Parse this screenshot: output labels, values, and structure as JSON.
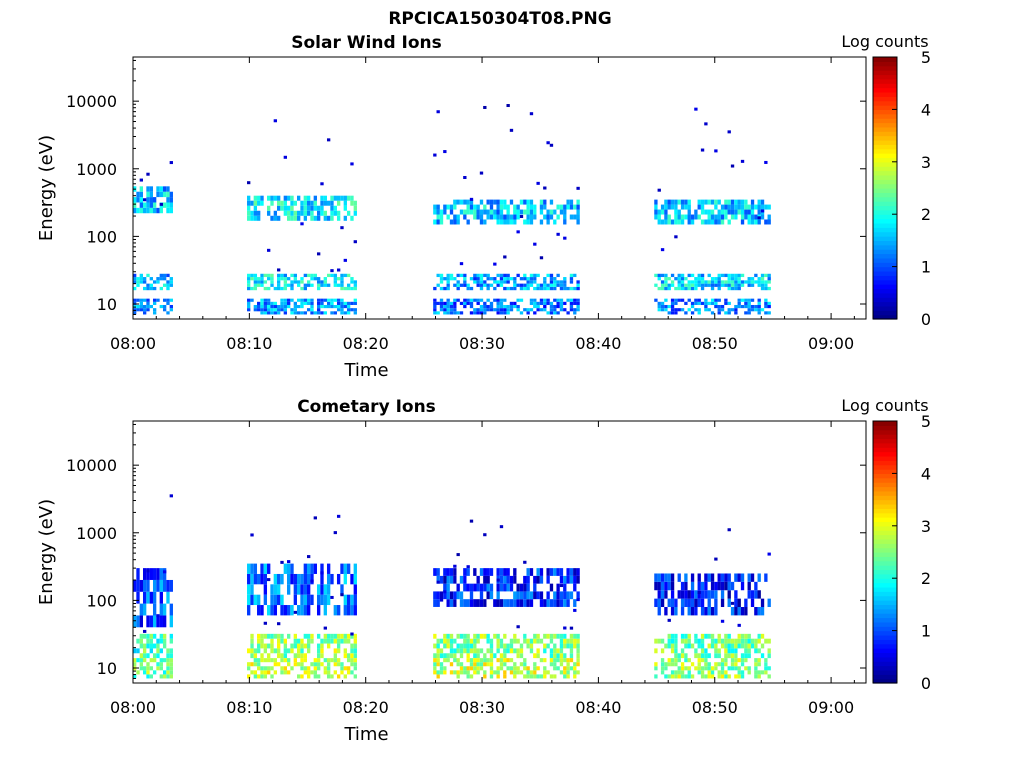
{
  "figure_title": "RPCICA150304T08.PNG",
  "chart_data": [
    {
      "type": "heatmap",
      "title": "Solar Wind Ions",
      "xlabel": "Time",
      "ylabel": "Energy (eV)",
      "x_ticks": [
        "08:00",
        "08:10",
        "08:20",
        "08:30",
        "08:40",
        "08:50",
        "09:00"
      ],
      "x_range_minutes": [
        0,
        63
      ],
      "y_scale": "log",
      "y_ticks": [
        {
          "value": 10,
          "label": "10"
        },
        {
          "value": 100,
          "label": "100"
        },
        {
          "value": 1000,
          "label": "1000"
        },
        {
          "value": 10000,
          "label": "10000"
        }
      ],
      "y_range_eV": [
        6,
        45000
      ],
      "colorbar": {
        "title": "Log counts",
        "ticks": [
          "0",
          "1",
          "2",
          "3",
          "4",
          "5"
        ],
        "range": [
          0,
          5
        ],
        "colormap": "jet"
      },
      "bursts": [
        {
          "start_min": 0.0,
          "end_min": 3.2,
          "bands_eV": [
            {
              "from": 220,
              "to": 550,
              "level": 1.6
            },
            {
              "from": 16,
              "to": 28,
              "level": 1.5
            },
            {
              "from": 7,
              "to": 12,
              "level": 1.2
            }
          ]
        },
        {
          "start_min": 9.8,
          "end_min": 19.2,
          "bands_eV": [
            {
              "from": 170,
              "to": 400,
              "level": 1.8
            },
            {
              "from": 16,
              "to": 28,
              "level": 1.8
            },
            {
              "from": 7,
              "to": 12,
              "level": 1.4
            }
          ]
        },
        {
          "start_min": 25.8,
          "end_min": 38.3,
          "bands_eV": [
            {
              "from": 150,
              "to": 350,
              "level": 1.6
            },
            {
              "from": 16,
              "to": 28,
              "level": 1.4
            },
            {
              "from": 7,
              "to": 12,
              "level": 1.2
            }
          ]
        },
        {
          "start_min": 44.8,
          "end_min": 54.8,
          "bands_eV": [
            {
              "from": 150,
              "to": 350,
              "level": 1.6
            },
            {
              "from": 16,
              "to": 28,
              "level": 1.7
            },
            {
              "from": 7,
              "to": 12,
              "level": 1.3
            }
          ]
        }
      ],
      "max_energy_eV": [
        3000,
        8000,
        9000,
        13000
      ]
    },
    {
      "type": "heatmap",
      "title": "Cometary Ions",
      "xlabel": "Time",
      "ylabel": "Energy (eV)",
      "x_ticks": [
        "08:00",
        "08:10",
        "08:20",
        "08:30",
        "08:40",
        "08:50",
        "09:00"
      ],
      "x_range_minutes": [
        0,
        63
      ],
      "y_scale": "log",
      "y_ticks": [
        {
          "value": 10,
          "label": "10"
        },
        {
          "value": 100,
          "label": "100"
        },
        {
          "value": 1000,
          "label": "1000"
        },
        {
          "value": 10000,
          "label": "10000"
        }
      ],
      "y_range_eV": [
        6,
        45000
      ],
      "colorbar": {
        "title": "Log counts",
        "ticks": [
          "0",
          "1",
          "2",
          "3",
          "4",
          "5"
        ],
        "range": [
          0,
          5
        ],
        "colormap": "jet"
      },
      "bursts": [
        {
          "start_min": 0.0,
          "end_min": 3.3,
          "bands_eV": [
            {
              "from": 40,
              "to": 300,
              "level": 1.0
            },
            {
              "from": 14,
              "to": 32,
              "level": 2.2
            },
            {
              "from": 7,
              "to": 14,
              "level": 2.4
            }
          ]
        },
        {
          "start_min": 9.8,
          "end_min": 19.2,
          "bands_eV": [
            {
              "from": 60,
              "to": 350,
              "level": 1.2
            },
            {
              "from": 14,
              "to": 32,
              "level": 2.6
            },
            {
              "from": 7,
              "to": 14,
              "level": 2.8
            }
          ]
        },
        {
          "start_min": 25.8,
          "end_min": 38.3,
          "bands_eV": [
            {
              "from": 80,
              "to": 300,
              "level": 0.8
            },
            {
              "from": 14,
              "to": 32,
              "level": 2.5
            },
            {
              "from": 7,
              "to": 14,
              "level": 2.8
            }
          ]
        },
        {
          "start_min": 44.8,
          "end_min": 54.8,
          "bands_eV": [
            {
              "from": 60,
              "to": 250,
              "level": 0.7
            },
            {
              "from": 14,
              "to": 32,
              "level": 2.4
            },
            {
              "from": 7,
              "to": 14,
              "level": 2.6
            }
          ]
        }
      ],
      "max_energy_eV": [
        5000,
        2000,
        1500,
        2000
      ]
    }
  ]
}
